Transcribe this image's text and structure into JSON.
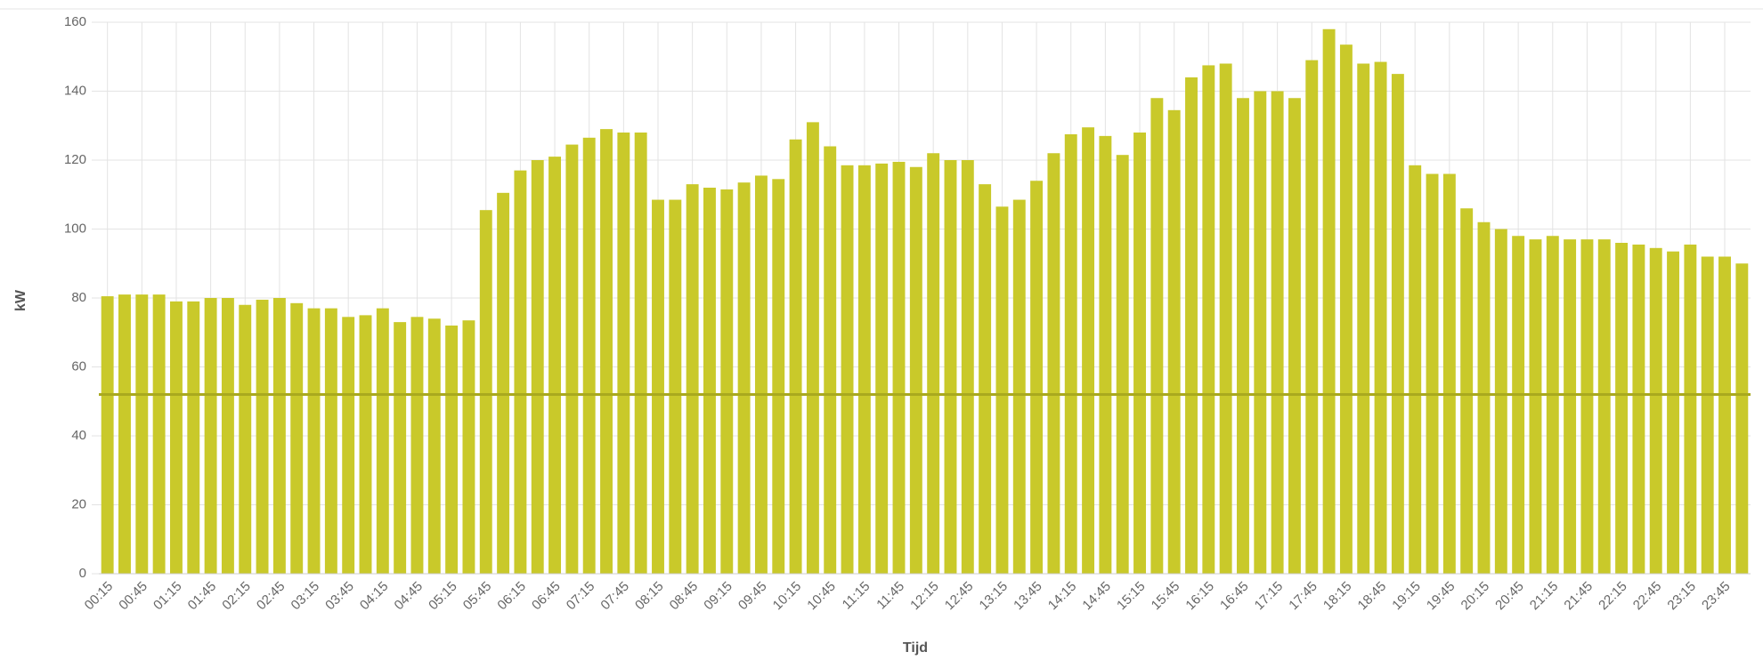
{
  "chart_data": {
    "type": "bar",
    "x_label": "Tijd",
    "y_label": "kW",
    "categories": [
      "00:15",
      null,
      "00:45",
      null,
      "01:15",
      null,
      "01:45",
      null,
      "02:15",
      null,
      "02:45",
      null,
      "03:15",
      null,
      "03:45",
      null,
      "04:15",
      null,
      "04:45",
      null,
      "05:15",
      null,
      "05:45",
      null,
      "06:15",
      null,
      "06:45",
      null,
      "07:15",
      null,
      "07:45",
      null,
      "08:15",
      null,
      "08:45",
      null,
      "09:15",
      null,
      "09:45",
      null,
      "10:15",
      null,
      "10:45",
      null,
      "11:15",
      null,
      "11:45",
      null,
      "12:15",
      null,
      "12:45",
      null,
      "13:15",
      null,
      "13:45",
      null,
      "14:15",
      null,
      "14:45",
      null,
      "15:15",
      null,
      "15:45",
      null,
      "16:15",
      null,
      "16:45",
      null,
      "17:15",
      null,
      "17:45",
      null,
      "18:15",
      null,
      "18:45",
      null,
      "19:15",
      null,
      "19:45",
      null,
      "20:15",
      null,
      "20:45",
      null,
      "21:15",
      null,
      "21:45",
      null,
      "22:15",
      null,
      "22:45",
      null,
      "23:15",
      null,
      "23:45",
      null
    ],
    "values": [
      80.5,
      81,
      81,
      81,
      79,
      79,
      80,
      80,
      78,
      79.5,
      80,
      78.5,
      77,
      77,
      74.5,
      75,
      77,
      73,
      74.5,
      74,
      72,
      73.5,
      105.5,
      110.5,
      117,
      120,
      121,
      124.5,
      126.5,
      129,
      128,
      128,
      108.5,
      108.5,
      113,
      112,
      111.5,
      113.5,
      115.5,
      114.5,
      126,
      131,
      124,
      118.5,
      118.5,
      119,
      119.5,
      118,
      122,
      120,
      120,
      113,
      106.5,
      108.5,
      114,
      122,
      127.5,
      129.5,
      127,
      121.5,
      128,
      138,
      134.5,
      144,
      147.5,
      148,
      138,
      140,
      140,
      138,
      149,
      158,
      153.5,
      148,
      148.5,
      145,
      118.5,
      116,
      116,
      106,
      102,
      100,
      98,
      97,
      98,
      97,
      97,
      97,
      96,
      95.5,
      94.5,
      93.5,
      95.5,
      92,
      92,
      90
    ],
    "color": "#c9c92a",
    "reference_line": {
      "value": 52,
      "color": "#a9a91e"
    },
    "ylim": [
      0,
      160
    ],
    "yticks": [
      0,
      20,
      40,
      60,
      80,
      100,
      120,
      140,
      160
    ],
    "grid": true
  }
}
